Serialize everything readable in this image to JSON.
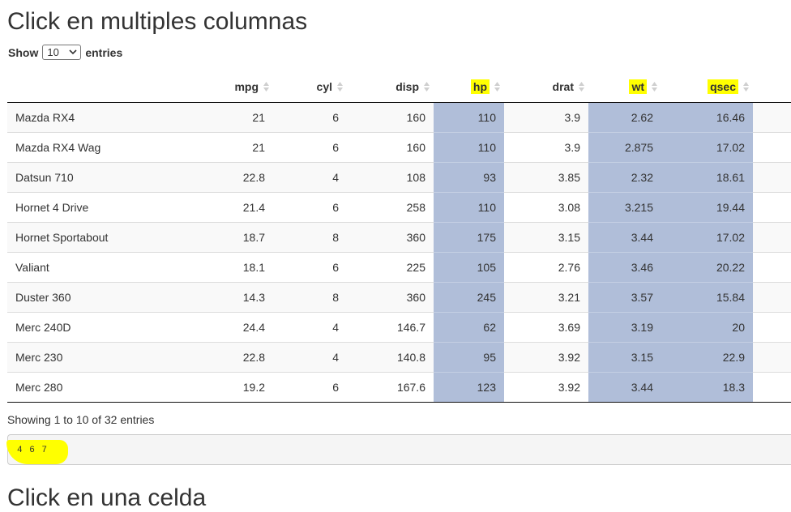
{
  "title": "Click en multiples columnas",
  "length": {
    "show": "Show",
    "selected": "10",
    "entries": "entries"
  },
  "columns": [
    {
      "label": "",
      "highlight": false,
      "name": "col-name"
    },
    {
      "label": "mpg",
      "highlight": false,
      "name": "col-mpg"
    },
    {
      "label": "cyl",
      "highlight": false,
      "name": "col-cyl"
    },
    {
      "label": "disp",
      "highlight": false,
      "name": "col-disp"
    },
    {
      "label": "hp",
      "highlight": true,
      "name": "col-hp"
    },
    {
      "label": "drat",
      "highlight": false,
      "name": "col-drat"
    },
    {
      "label": "wt",
      "highlight": true,
      "name": "col-wt"
    },
    {
      "label": "qsec",
      "highlight": true,
      "name": "col-qsec"
    }
  ],
  "selected_columns": [
    4,
    6,
    7
  ],
  "rows": [
    [
      "Mazda RX4",
      "21",
      "6",
      "160",
      "110",
      "3.9",
      "2.62",
      "16.46"
    ],
    [
      "Mazda RX4 Wag",
      "21",
      "6",
      "160",
      "110",
      "3.9",
      "2.875",
      "17.02"
    ],
    [
      "Datsun 710",
      "22.8",
      "4",
      "108",
      "93",
      "3.85",
      "2.32",
      "18.61"
    ],
    [
      "Hornet 4 Drive",
      "21.4",
      "6",
      "258",
      "110",
      "3.08",
      "3.215",
      "19.44"
    ],
    [
      "Hornet Sportabout",
      "18.7",
      "8",
      "360",
      "175",
      "3.15",
      "3.44",
      "17.02"
    ],
    [
      "Valiant",
      "18.1",
      "6",
      "225",
      "105",
      "2.76",
      "3.46",
      "20.22"
    ],
    [
      "Duster 360",
      "14.3",
      "8",
      "360",
      "245",
      "3.21",
      "3.57",
      "15.84"
    ],
    [
      "Merc 240D",
      "24.4",
      "4",
      "146.7",
      "62",
      "3.69",
      "3.19",
      "20"
    ],
    [
      "Merc 230",
      "22.8",
      "4",
      "140.8",
      "95",
      "3.92",
      "3.15",
      "22.9"
    ],
    [
      "Merc 280",
      "19.2",
      "6",
      "167.6",
      "123",
      "3.92",
      "3.44",
      "18.3"
    ]
  ],
  "info": "Showing 1 to 10 of 32 entries",
  "output_text": "4 6 7",
  "next_title": "Click en una celda",
  "colors": {
    "selected": "#b0bed9",
    "highlight": "#ffff00"
  }
}
